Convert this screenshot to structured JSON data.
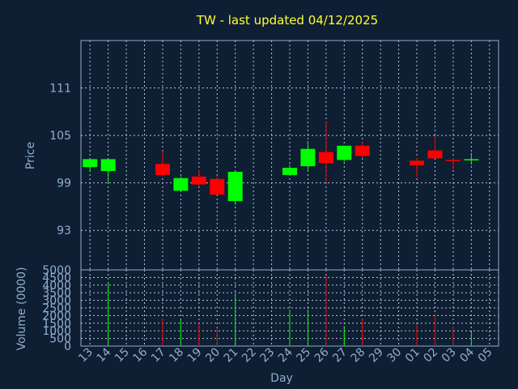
{
  "chart_data": {
    "type": "candlestick",
    "title": "TW - last updated 04/12/2025",
    "xlabel": "Day",
    "ylabel": "Price",
    "volume_label": "Volume (0000)",
    "price_ticks": [
      111,
      105,
      99,
      93
    ],
    "price_ylim": [
      88,
      117
    ],
    "volume_ticks": [
      5000,
      4500,
      4000,
      3500,
      3000,
      2500,
      2000,
      1500,
      1000,
      500,
      0
    ],
    "volume_ylim": [
      0,
      5000
    ],
    "x_ticks": [
      "13",
      "14",
      "15",
      "16",
      "17",
      "18",
      "19",
      "20",
      "21",
      "22",
      "23",
      "24",
      "25",
      "26",
      "27",
      "28",
      "29",
      "30",
      "01",
      "02",
      "03",
      "04",
      "05"
    ],
    "grid": true,
    "colors": {
      "up": "#00ff00",
      "down": "#ff0000",
      "grid": "#b4c8dc",
      "axis": "#8fb0cf",
      "title": "#ffff33",
      "background": "#0e1e33"
    },
    "candles": [
      {
        "day": "13",
        "open": 101.0,
        "high": 102.0,
        "low": 100.5,
        "close": 102.0,
        "volume": 0
      },
      {
        "day": "14",
        "open": 100.5,
        "high": 102.0,
        "low": 99.0,
        "close": 102.0,
        "volume": 4200
      },
      {
        "day": "17",
        "open": 101.4,
        "high": 103.0,
        "low": 99.8,
        "close": 100.0,
        "volume": 1800
      },
      {
        "day": "18",
        "open": 98.0,
        "high": 99.8,
        "low": 98.0,
        "close": 99.6,
        "volume": 1800
      },
      {
        "day": "19",
        "open": 99.8,
        "high": 100.6,
        "low": 98.6,
        "close": 98.8,
        "volume": 1500
      },
      {
        "day": "20",
        "open": 99.5,
        "high": 99.9,
        "low": 97.5,
        "close": 97.5,
        "volume": 1200
      },
      {
        "day": "21",
        "open": 96.7,
        "high": 100.6,
        "low": 96.2,
        "close": 100.4,
        "volume": 3300
      },
      {
        "day": "24",
        "open": 100.0,
        "high": 101.3,
        "low": 100.0,
        "close": 100.9,
        "volume": 2400
      },
      {
        "day": "25",
        "open": 101.1,
        "high": 104.3,
        "low": 100.4,
        "close": 103.3,
        "volume": 2400
      },
      {
        "day": "26",
        "open": 102.9,
        "high": 106.8,
        "low": 99.0,
        "close": 101.5,
        "volume": 4600
      },
      {
        "day": "27",
        "open": 101.9,
        "high": 103.7,
        "low": 101.7,
        "close": 103.7,
        "volume": 1300
      },
      {
        "day": "28",
        "open": 103.7,
        "high": 104.2,
        "low": 102.2,
        "close": 102.4,
        "volume": 1800
      },
      {
        "day": "01",
        "open": 101.8,
        "high": 102.2,
        "low": 99.7,
        "close": 101.2,
        "volume": 1400
      },
      {
        "day": "02",
        "open": 103.1,
        "high": 105.0,
        "low": 102.1,
        "close": 102.1,
        "volume": 2100
      },
      {
        "day": "03",
        "open": 101.9,
        "high": 102.2,
        "low": 100.7,
        "close": 101.8,
        "volume": 1300
      },
      {
        "day": "04",
        "open": 101.9,
        "high": 102.8,
        "low": 101.3,
        "close": 102.0,
        "volume": 900
      }
    ]
  }
}
